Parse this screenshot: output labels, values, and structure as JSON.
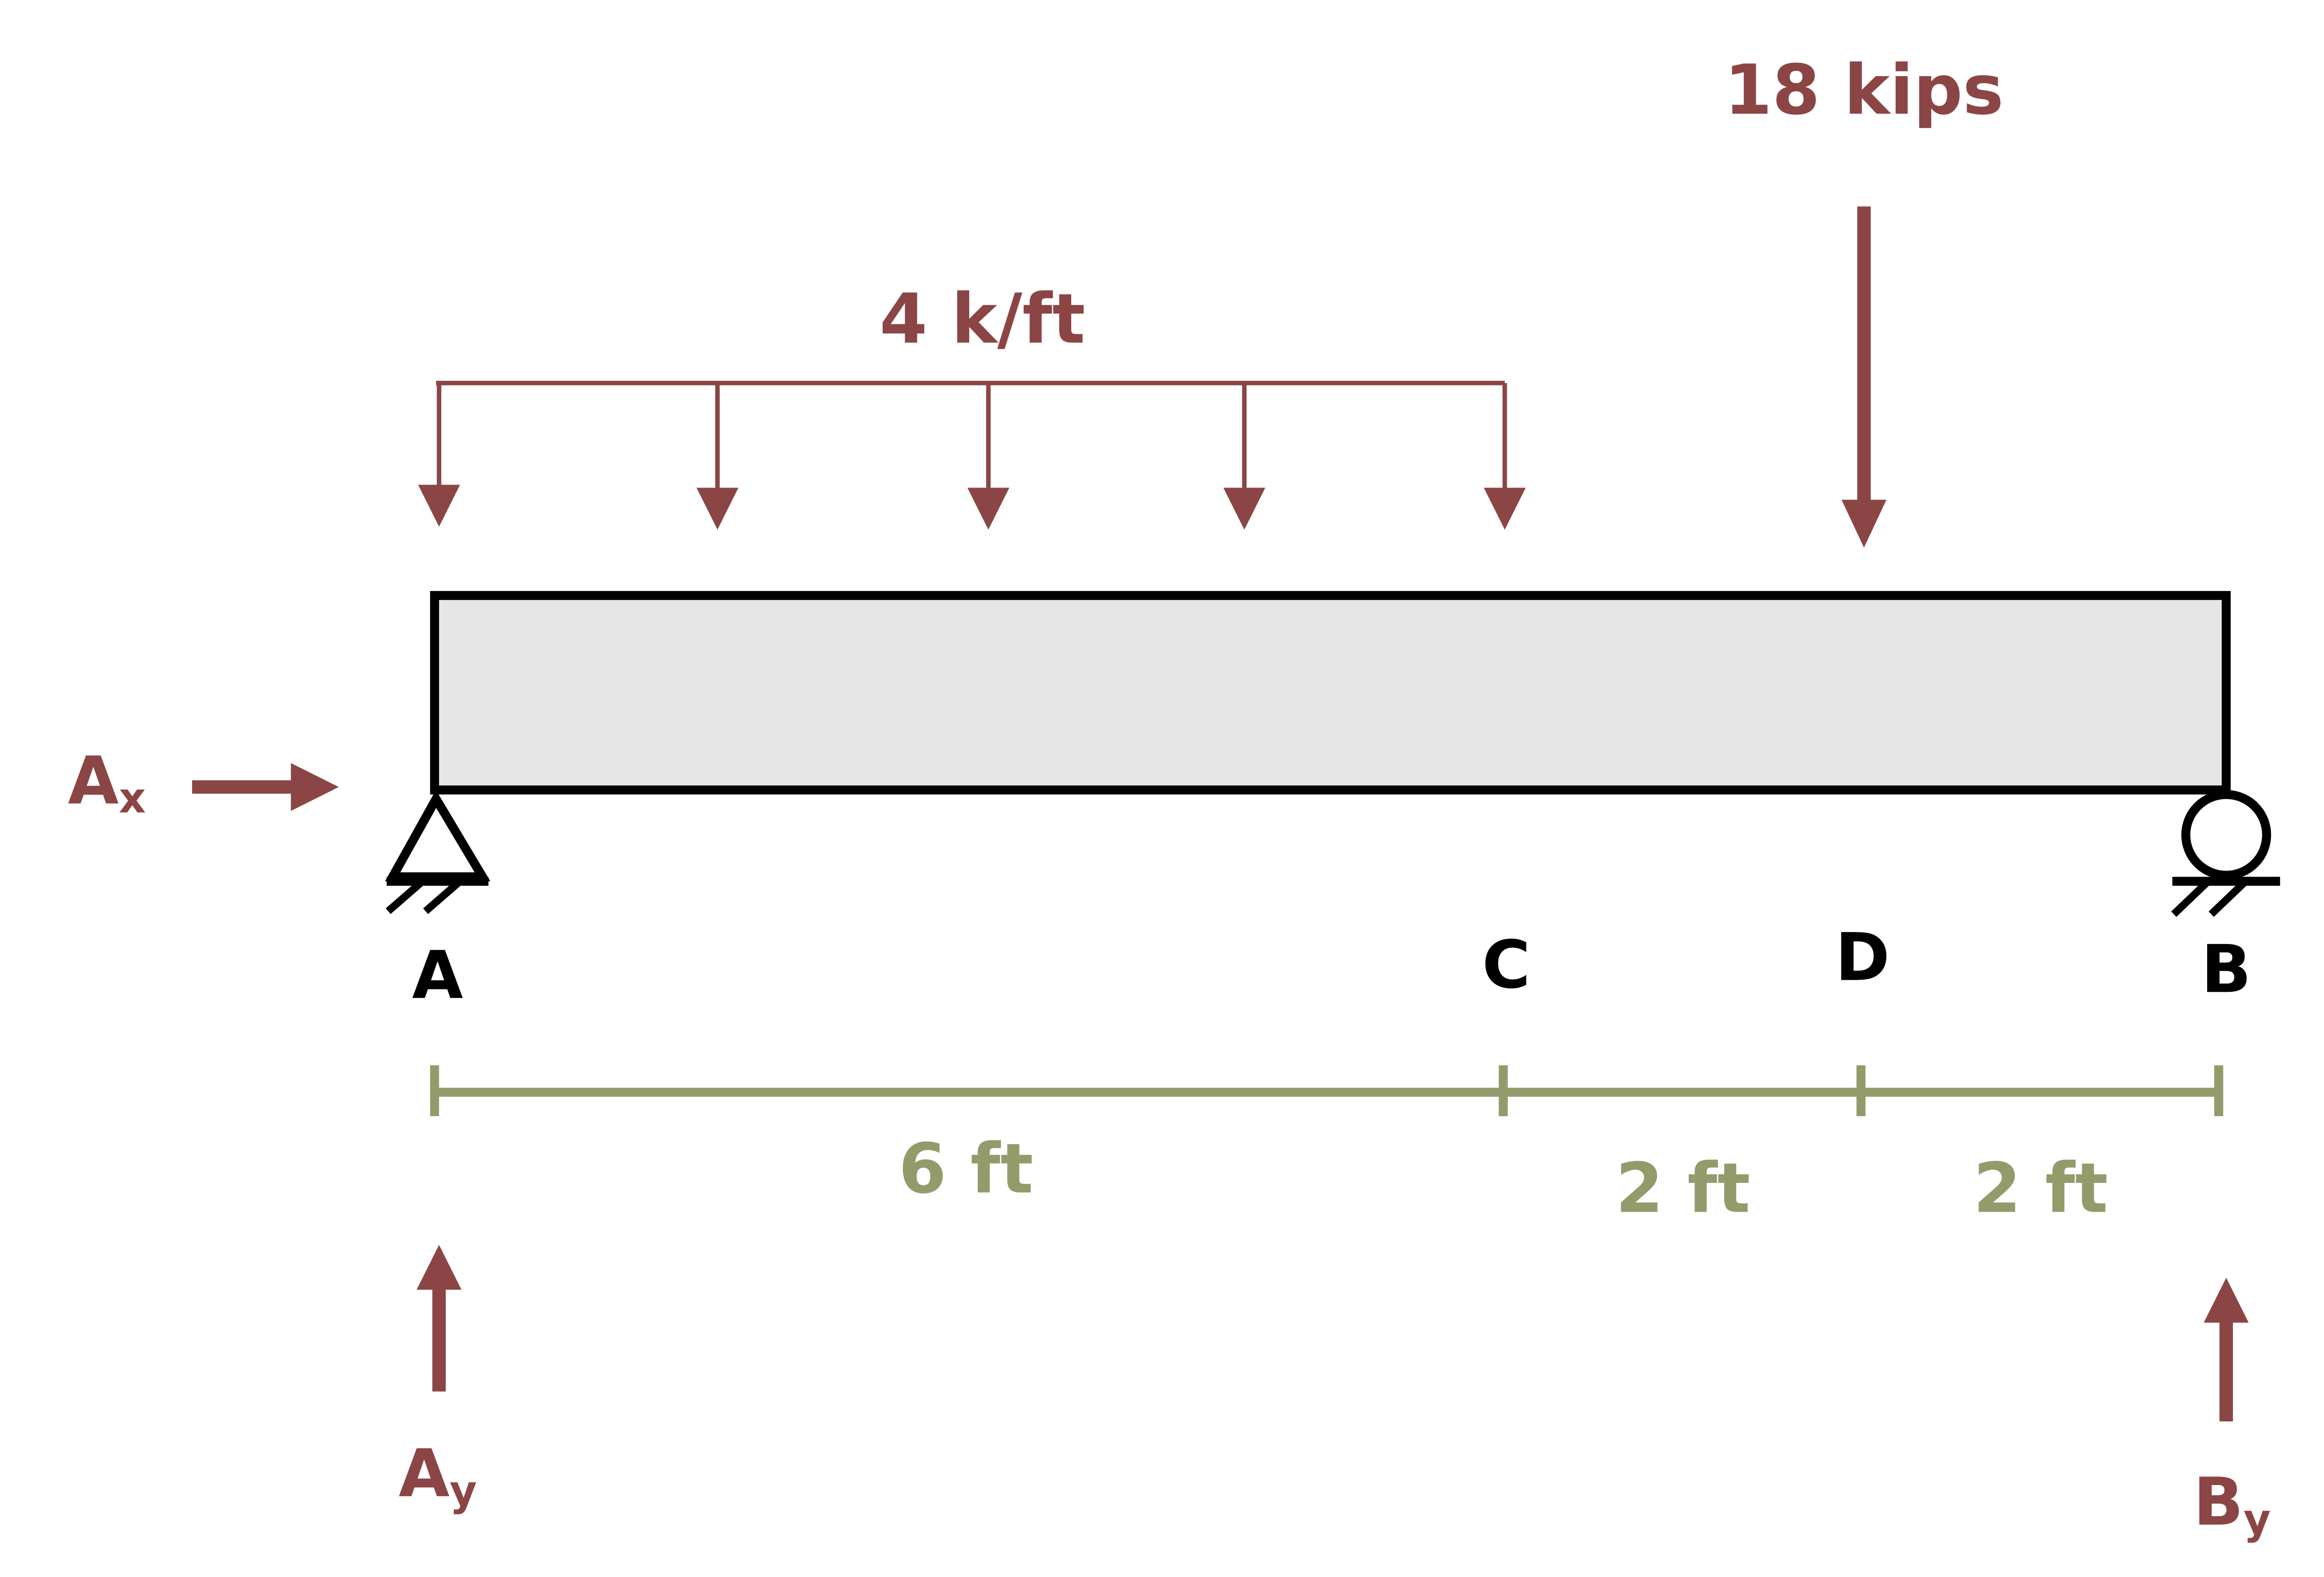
{
  "colors": {
    "load": "#8b4545",
    "dimension": "#939b6b",
    "beam_fill": "#e6e6e6",
    "outline": "#000000"
  },
  "loads": {
    "distributed": {
      "label": "4 k/ft"
    },
    "point": {
      "label": "18 kips"
    }
  },
  "reactions": {
    "ax": {
      "base": "A",
      "sub": "x"
    },
    "ay": {
      "base": "A",
      "sub": "y"
    },
    "by": {
      "base": "B",
      "sub": "y"
    }
  },
  "points": {
    "a": "A",
    "c": "C",
    "d": "D",
    "b": "B"
  },
  "dimensions": {
    "ac": "6 ft",
    "cd": "2 ft",
    "db": "2 ft"
  }
}
